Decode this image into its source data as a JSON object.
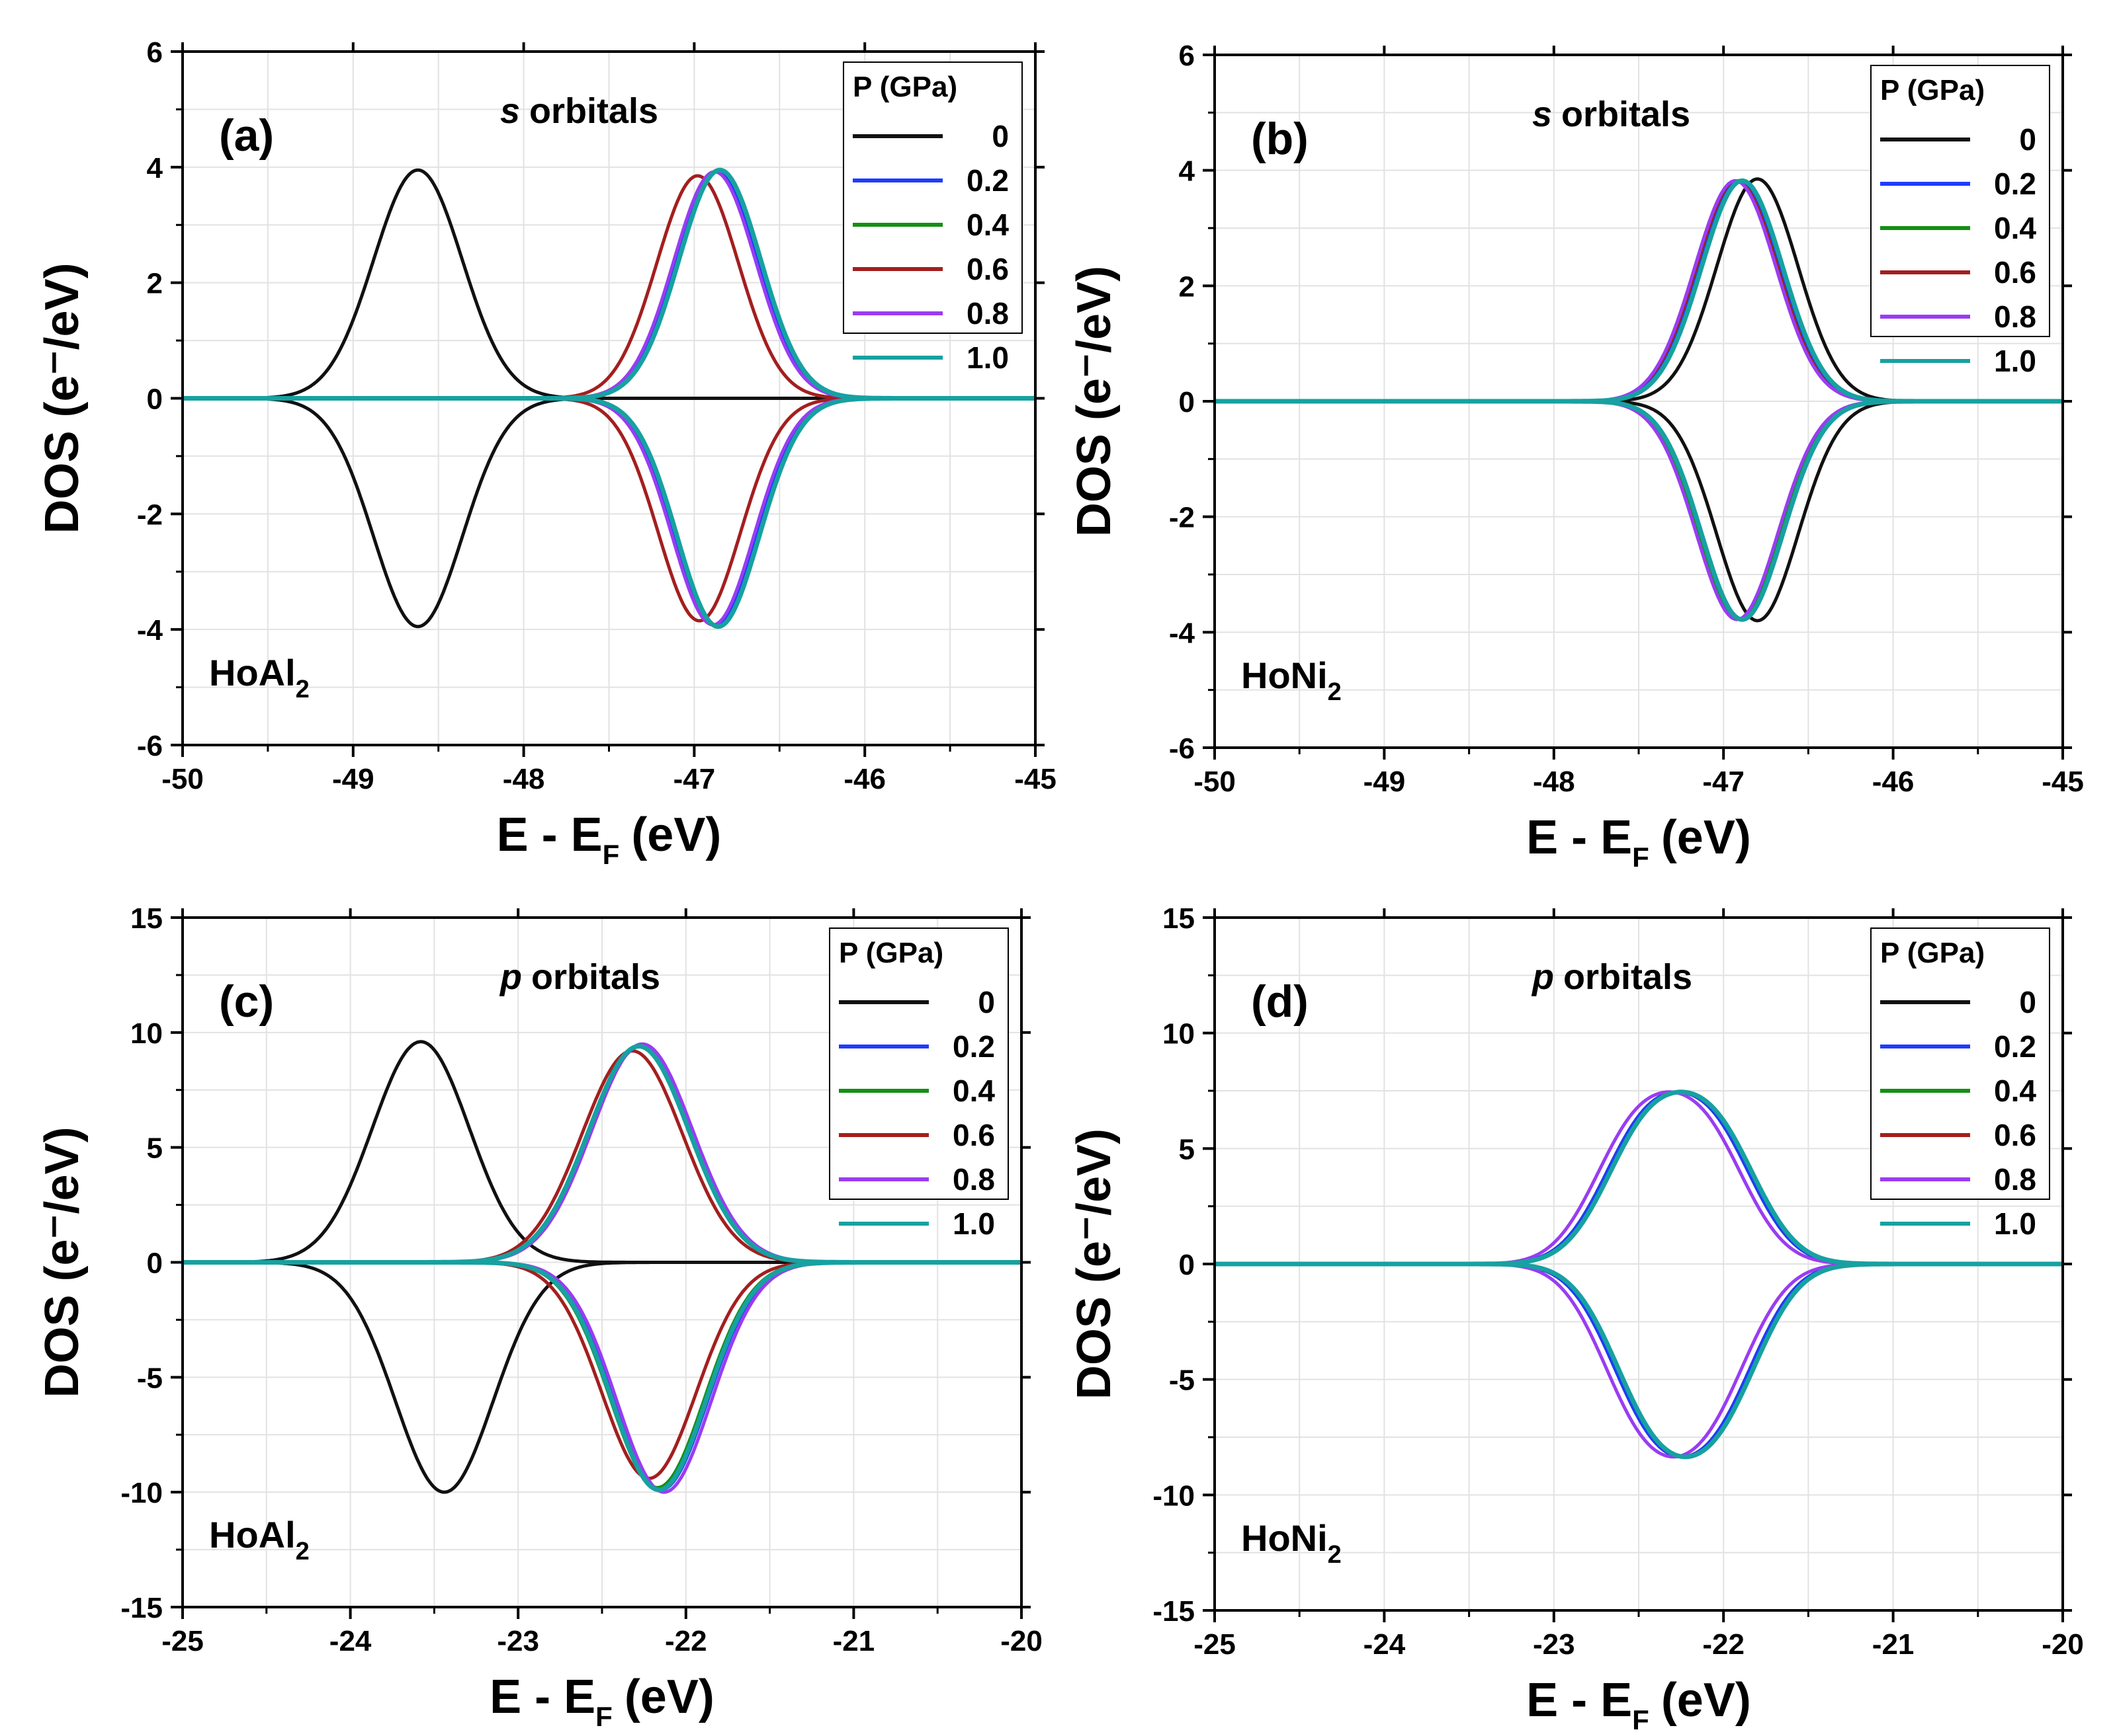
{
  "legend": {
    "title": "P (GPa)",
    "entries": [
      {
        "label": "0",
        "color": "#111111"
      },
      {
        "label": "0.2",
        "color": "#1e3cff"
      },
      {
        "label": "0.4",
        "color": "#148f14"
      },
      {
        "label": "0.6",
        "color": "#a31f1f"
      },
      {
        "label": "0.8",
        "color": "#9a3cf2"
      },
      {
        "label": "1.0",
        "color": "#17a1a1"
      }
    ]
  },
  "chart_data": [
    {
      "type": "line",
      "panel": "(a)",
      "title": "orbitals",
      "title_italic": "s",
      "compound": "HoAl",
      "compound_sub": "2",
      "xlabel": "E - E",
      "xlabel_sub": "F",
      "xlabel_unit": "(eV)",
      "ylabel": "DOS (e⁻/eV)",
      "xlim": [
        -50,
        -45
      ],
      "ylim": [
        -6,
        6
      ],
      "xticks": [
        -50,
        -49,
        -48,
        -47,
        -46,
        -45
      ],
      "xtick_labels": [
        "-50",
        "-49",
        "-48",
        "-47",
        "-46",
        "-45"
      ],
      "yticks": [
        -6,
        -4,
        -2,
        0,
        2,
        4,
        6
      ],
      "ytick_labels": [
        "-6",
        "-4",
        "-2",
        "0",
        "2",
        "4",
        "6"
      ],
      "grid": true,
      "legend_position": "top-right",
      "series": [
        {
          "name": "0",
          "peaks": [
            {
              "center": -48.62,
              "height": 3.95,
              "width": 0.26
            }
          ],
          "peaks_down": [
            {
              "center": -48.62,
              "height": 3.95,
              "width": 0.26
            }
          ]
        },
        {
          "name": "0.2",
          "peaks": [
            {
              "center": -46.87,
              "height": 3.92,
              "width": 0.24
            }
          ],
          "peaks_down": [
            {
              "center": -46.88,
              "height": 3.92,
              "width": 0.24
            }
          ]
        },
        {
          "name": "0.4",
          "peaks": [
            {
              "center": -46.86,
              "height": 3.93,
              "width": 0.24
            }
          ],
          "peaks_down": [
            {
              "center": -46.87,
              "height": 3.93,
              "width": 0.24
            }
          ]
        },
        {
          "name": "0.6",
          "peaks": [
            {
              "center": -46.98,
              "height": 3.85,
              "width": 0.24
            }
          ],
          "peaks_down": [
            {
              "center": -46.97,
              "height": 3.85,
              "width": 0.24
            }
          ]
        },
        {
          "name": "0.8",
          "peaks": [
            {
              "center": -46.88,
              "height": 3.92,
              "width": 0.24
            }
          ],
          "peaks_down": [
            {
              "center": -46.89,
              "height": 3.92,
              "width": 0.24
            }
          ]
        },
        {
          "name": "1.0",
          "peaks": [
            {
              "center": -46.85,
              "height": 3.95,
              "width": 0.24
            }
          ],
          "peaks_down": [
            {
              "center": -46.86,
              "height": 3.95,
              "width": 0.24
            }
          ]
        }
      ]
    },
    {
      "type": "line",
      "panel": "(b)",
      "title": "orbitals",
      "title_italic": "s",
      "compound": "HoNi",
      "compound_sub": "2",
      "xlabel": "E - E",
      "xlabel_sub": "F",
      "xlabel_unit": "(eV)",
      "ylabel": "DOS (e⁻/eV)",
      "xlim": [
        -50,
        -45
      ],
      "ylim": [
        -6,
        6
      ],
      "xticks": [
        -50,
        -49,
        -48,
        -47,
        -46,
        -45
      ],
      "xtick_labels": [
        "-50",
        "-49",
        "-48",
        "-47",
        "-46",
        "-45"
      ],
      "yticks": [
        -6,
        -4,
        -2,
        0,
        2,
        4,
        6
      ],
      "ytick_labels": [
        "-6",
        "-4",
        "-2",
        "0",
        "2",
        "4",
        "6"
      ],
      "grid": true,
      "legend_position": "top-right",
      "series": [
        {
          "name": "0",
          "peaks": [
            {
              "center": -46.8,
              "height": 3.85,
              "width": 0.24
            }
          ],
          "peaks_down": [
            {
              "center": -46.8,
              "height": 3.8,
              "width": 0.24
            }
          ]
        },
        {
          "name": "0.2",
          "peaks": [
            {
              "center": -46.9,
              "height": 3.82,
              "width": 0.24
            }
          ],
          "peaks_down": [
            {
              "center": -46.89,
              "height": 3.78,
              "width": 0.24
            }
          ]
        },
        {
          "name": "0.4",
          "peaks": [
            {
              "center": -46.9,
              "height": 3.82,
              "width": 0.24
            }
          ],
          "peaks_down": [
            {
              "center": -46.9,
              "height": 3.78,
              "width": 0.24
            }
          ]
        },
        {
          "name": "0.6",
          "peaks": [
            {
              "center": -46.91,
              "height": 3.82,
              "width": 0.24
            }
          ],
          "peaks_down": [
            {
              "center": -46.9,
              "height": 3.78,
              "width": 0.24
            }
          ]
        },
        {
          "name": "0.8",
          "peaks": [
            {
              "center": -46.93,
              "height": 3.82,
              "width": 0.24
            }
          ],
          "peaks_down": [
            {
              "center": -46.92,
              "height": 3.78,
              "width": 0.24
            }
          ]
        },
        {
          "name": "1.0",
          "peaks": [
            {
              "center": -46.89,
              "height": 3.82,
              "width": 0.24
            }
          ],
          "peaks_down": [
            {
              "center": -46.89,
              "height": 3.78,
              "width": 0.24
            }
          ]
        }
      ]
    },
    {
      "type": "line",
      "panel": "(c)",
      "title": "orbitals",
      "title_italic": "p",
      "compound": "HoAl",
      "compound_sub": "2",
      "xlabel": "E - E",
      "xlabel_sub": "F",
      "xlabel_unit": "(eV)",
      "ylabel": "DOS (e⁻/eV)",
      "xlim": [
        -25,
        -20
      ],
      "ylim": [
        -15,
        15
      ],
      "xticks": [
        -25,
        -24,
        -23,
        -22,
        -21,
        -20
      ],
      "xtick_labels": [
        "-25",
        "-24",
        "-23",
        "-22",
        "-21",
        "-20"
      ],
      "yticks": [
        -15,
        -10,
        -5,
        0,
        5,
        10,
        15
      ],
      "ytick_labels": [
        "-15",
        "-10",
        "-5",
        "0",
        "5",
        "10",
        "15"
      ],
      "grid": true,
      "legend_position": "top-right",
      "series": [
        {
          "name": "0",
          "peaks": [
            {
              "center": -23.58,
              "height": 9.6,
              "width": 0.29
            }
          ],
          "peaks_down": [
            {
              "center": -23.44,
              "height": 10.0,
              "width": 0.29
            }
          ]
        },
        {
          "name": "0.2",
          "peaks": [
            {
              "center": -22.27,
              "height": 9.4,
              "width": 0.3
            }
          ],
          "peaks_down": [
            {
              "center": -22.15,
              "height": 9.9,
              "width": 0.28
            }
          ]
        },
        {
          "name": "0.4",
          "peaks": [
            {
              "center": -22.27,
              "height": 9.4,
              "width": 0.3
            }
          ],
          "peaks_down": [
            {
              "center": -22.17,
              "height": 9.8,
              "width": 0.28
            }
          ]
        },
        {
          "name": "0.6",
          "peaks": [
            {
              "center": -22.32,
              "height": 9.2,
              "width": 0.3
            }
          ],
          "peaks_down": [
            {
              "center": -22.22,
              "height": 9.4,
              "width": 0.28
            }
          ]
        },
        {
          "name": "0.8",
          "peaks": [
            {
              "center": -22.26,
              "height": 9.5,
              "width": 0.3
            }
          ],
          "peaks_down": [
            {
              "center": -22.13,
              "height": 10.0,
              "width": 0.28
            }
          ]
        },
        {
          "name": "1.0",
          "peaks": [
            {
              "center": -22.28,
              "height": 9.4,
              "width": 0.3
            }
          ],
          "peaks_down": [
            {
              "center": -22.16,
              "height": 9.9,
              "width": 0.28
            }
          ]
        }
      ]
    },
    {
      "type": "line",
      "panel": "(d)",
      "title": "orbitals",
      "title_italic": "p",
      "compound": "HoNi",
      "compound_sub": "2",
      "xlabel": "E - E",
      "xlabel_sub": "F",
      "xlabel_unit": "(eV)",
      "ylabel": "DOS (e⁻/eV)",
      "xlim": [
        -25,
        -20
      ],
      "ylim": [
        -15,
        15
      ],
      "xticks": [
        -25,
        -24,
        -23,
        -22,
        -21,
        -20
      ],
      "xtick_labels": [
        "-25",
        "-24",
        "-23",
        "-22",
        "-21",
        "-20"
      ],
      "yticks": [
        -15,
        -10,
        -5,
        0,
        5,
        10,
        15
      ],
      "ytick_labels": [
        "-15",
        "-10",
        "-5",
        "0",
        "5",
        "10",
        "15"
      ],
      "grid": true,
      "legend_position": "top-right",
      "series": [
        {
          "name": "0",
          "peaks": [
            {
              "center": -22.48,
              "height": 5.3,
              "width": 0.25
            },
            {
              "center": -22.06,
              "height": 5.3,
              "width": 0.25
            }
          ],
          "peaks_down": [
            {
              "center": -22.44,
              "height": 5.8,
              "width": 0.25
            },
            {
              "center": -22.04,
              "height": 5.7,
              "width": 0.25
            }
          ]
        },
        {
          "name": "0.2",
          "peaks": [
            {
              "center": -22.48,
              "height": 5.3,
              "width": 0.25
            },
            {
              "center": -22.06,
              "height": 5.3,
              "width": 0.25
            }
          ],
          "peaks_down": [
            {
              "center": -22.44,
              "height": 5.8,
              "width": 0.25
            },
            {
              "center": -22.04,
              "height": 5.7,
              "width": 0.25
            }
          ]
        },
        {
          "name": "0.4",
          "peaks": [
            {
              "center": -22.47,
              "height": 5.3,
              "width": 0.25
            },
            {
              "center": -22.05,
              "height": 5.3,
              "width": 0.25
            }
          ],
          "peaks_down": [
            {
              "center": -22.43,
              "height": 5.8,
              "width": 0.25
            },
            {
              "center": -22.03,
              "height": 5.7,
              "width": 0.25
            }
          ]
        },
        {
          "name": "0.6",
          "peaks": [
            {
              "center": -22.48,
              "height": 5.3,
              "width": 0.25
            },
            {
              "center": -22.06,
              "height": 5.3,
              "width": 0.25
            }
          ],
          "peaks_down": [
            {
              "center": -22.44,
              "height": 5.8,
              "width": 0.25
            },
            {
              "center": -22.04,
              "height": 5.7,
              "width": 0.25
            }
          ]
        },
        {
          "name": "0.8",
          "peaks": [
            {
              "center": -22.53,
              "height": 5.3,
              "width": 0.25
            },
            {
              "center": -22.11,
              "height": 5.3,
              "width": 0.25
            }
          ],
          "peaks_down": [
            {
              "center": -22.49,
              "height": 5.8,
              "width": 0.25
            },
            {
              "center": -22.09,
              "height": 5.7,
              "width": 0.25
            }
          ]
        },
        {
          "name": "1.0",
          "peaks": [
            {
              "center": -22.46,
              "height": 5.3,
              "width": 0.25
            },
            {
              "center": -22.04,
              "height": 5.3,
              "width": 0.25
            }
          ],
          "peaks_down": [
            {
              "center": -22.42,
              "height": 5.8,
              "width": 0.25
            },
            {
              "center": -22.02,
              "height": 5.7,
              "width": 0.25
            }
          ]
        }
      ]
    }
  ]
}
